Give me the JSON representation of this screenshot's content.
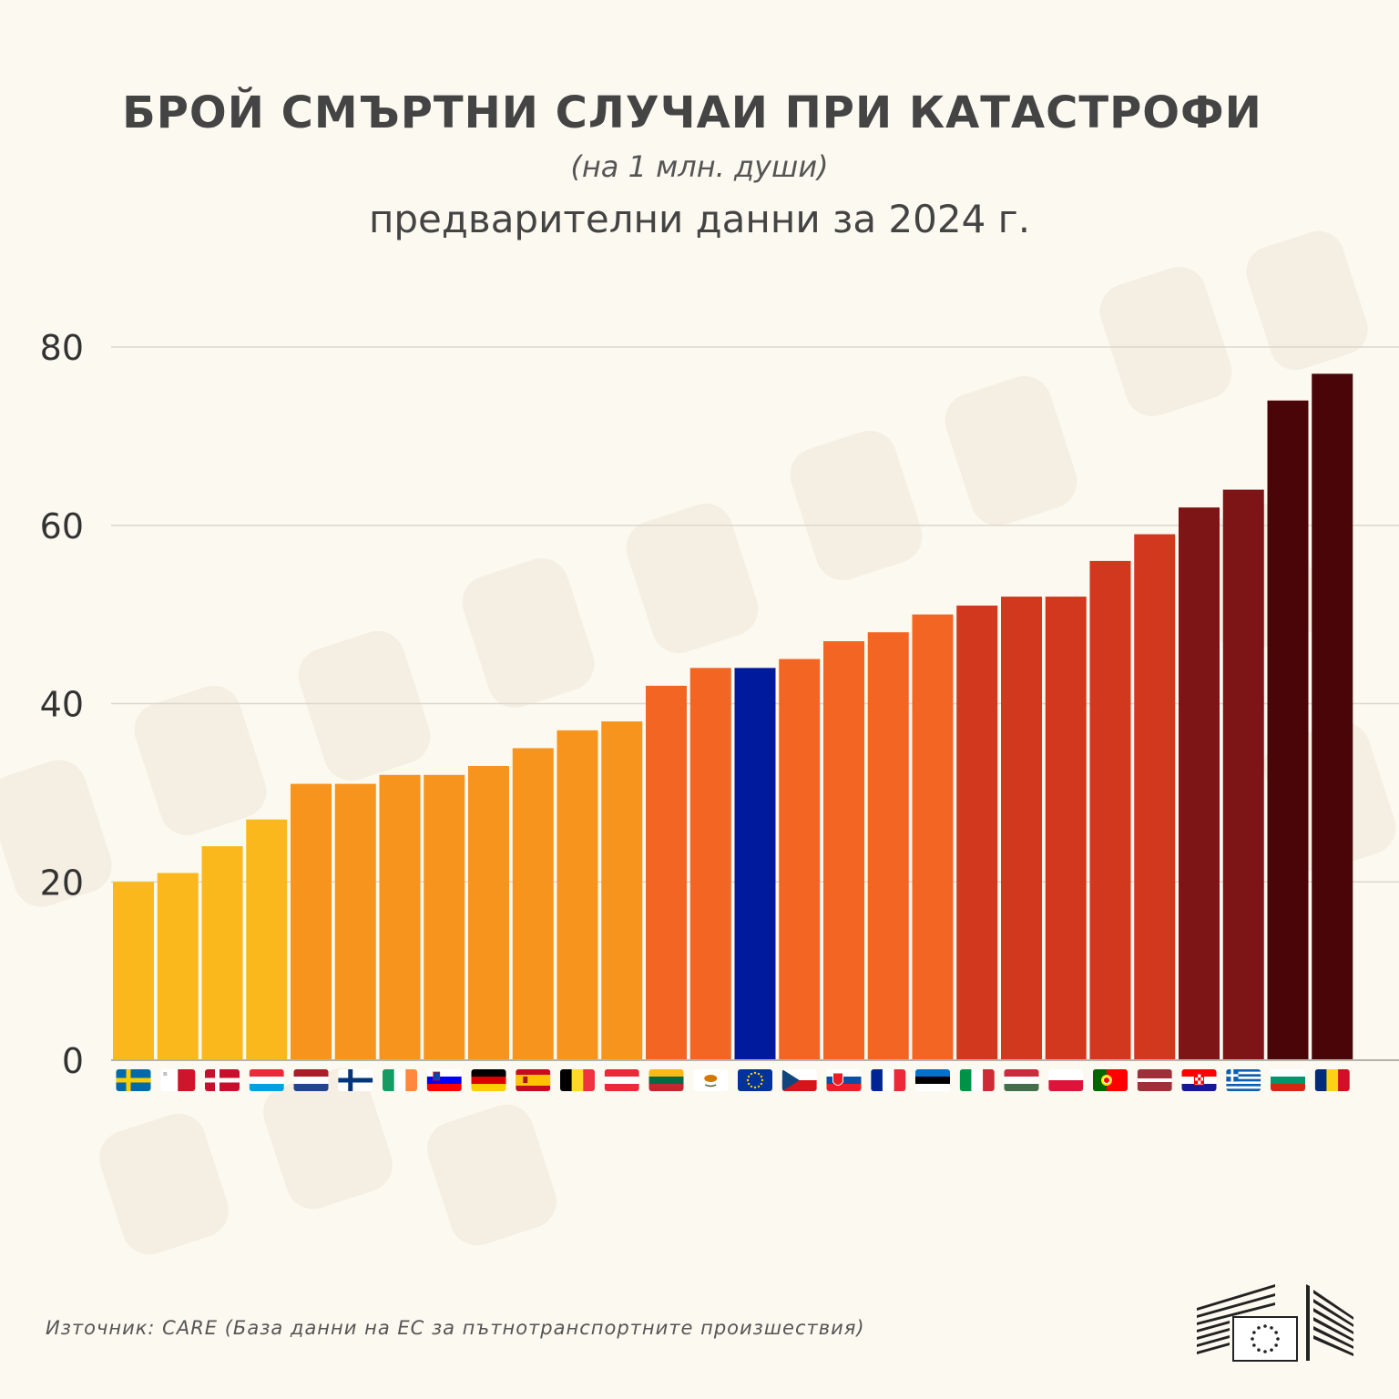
{
  "title": "БРОЙ СМЪРТНИ СЛУЧАИ ПРИ КАТАСТРОФИ",
  "subtitle": "(на 1 млн. души)",
  "subtitle2": "предварителни данни за 2024 г.",
  "source": "Източник: CARE (База данни на ЕС за пътнотранспортните произшествия)",
  "chart_data": {
    "type": "bar",
    "title": "БРОЙ СМЪРТНИ СЛУЧАИ ПРИ КАТАСТРОФИ",
    "xlabel": "",
    "ylabel": "",
    "ylim": [
      0,
      80
    ],
    "yticks": [
      0,
      20,
      40,
      60,
      80
    ],
    "grid": true,
    "categories": [
      "SE",
      "MT",
      "DK",
      "LU",
      "NL",
      "FI",
      "IE",
      "SI",
      "DE",
      "ES",
      "BE",
      "AT",
      "LT",
      "CY",
      "EU",
      "CZ",
      "SK",
      "FR",
      "EE",
      "IT",
      "HU",
      "PL",
      "PT",
      "LV",
      "HR",
      "GR",
      "BG",
      "RO"
    ],
    "values": [
      20,
      21,
      24,
      27,
      31,
      31,
      32,
      32,
      33,
      35,
      37,
      38,
      42,
      44,
      44,
      45,
      47,
      48,
      50,
      51,
      52,
      52,
      56,
      59,
      62,
      64,
      74,
      77
    ],
    "colors": [
      "#fbb81c",
      "#fbb81c",
      "#fbb81c",
      "#fbb81c",
      "#f7941d",
      "#f7941d",
      "#f7941d",
      "#f7941d",
      "#f7941d",
      "#f7941d",
      "#f7941d",
      "#f7941d",
      "#f26522",
      "#f26522",
      "#001a9e",
      "#f26522",
      "#f26522",
      "#f26522",
      "#f26522",
      "#d2381d",
      "#d2381d",
      "#d2381d",
      "#d2381d",
      "#d2381d",
      "#7d1416",
      "#7d1416",
      "#4a0508",
      "#4a0508"
    ]
  }
}
